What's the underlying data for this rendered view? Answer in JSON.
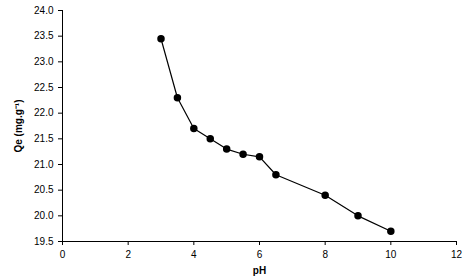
{
  "chart_data": {
    "type": "line",
    "x_label": "pH",
    "y_label": "Qe (mg.g⁻¹)",
    "x": [
      3,
      3.5,
      4,
      4.5,
      5,
      5.5,
      6,
      6.5,
      8,
      9,
      10
    ],
    "values": [
      23.45,
      22.3,
      21.7,
      21.5,
      21.3,
      21.2,
      21.15,
      20.8,
      20.4,
      20.0,
      19.7
    ],
    "color": "#000000",
    "marker": "circle",
    "line_style": "solid",
    "grid": false,
    "xlim": [
      0,
      12
    ],
    "xticks": [
      0,
      2,
      4,
      6,
      8,
      10,
      12
    ],
    "ylim": [
      19.5,
      24.0
    ],
    "yticks": [
      19.5,
      {
        "value": 20,
        "label": "20.0"
      },
      20.5,
      {
        "value": 21,
        "label": "21.0"
      },
      21.5,
      {
        "value": 22,
        "label": "22.0"
      },
      22.5,
      {
        "value": 23,
        "label": "23.0"
      },
      23.5,
      {
        "value": 24,
        "label": "24.0"
      }
    ]
  }
}
